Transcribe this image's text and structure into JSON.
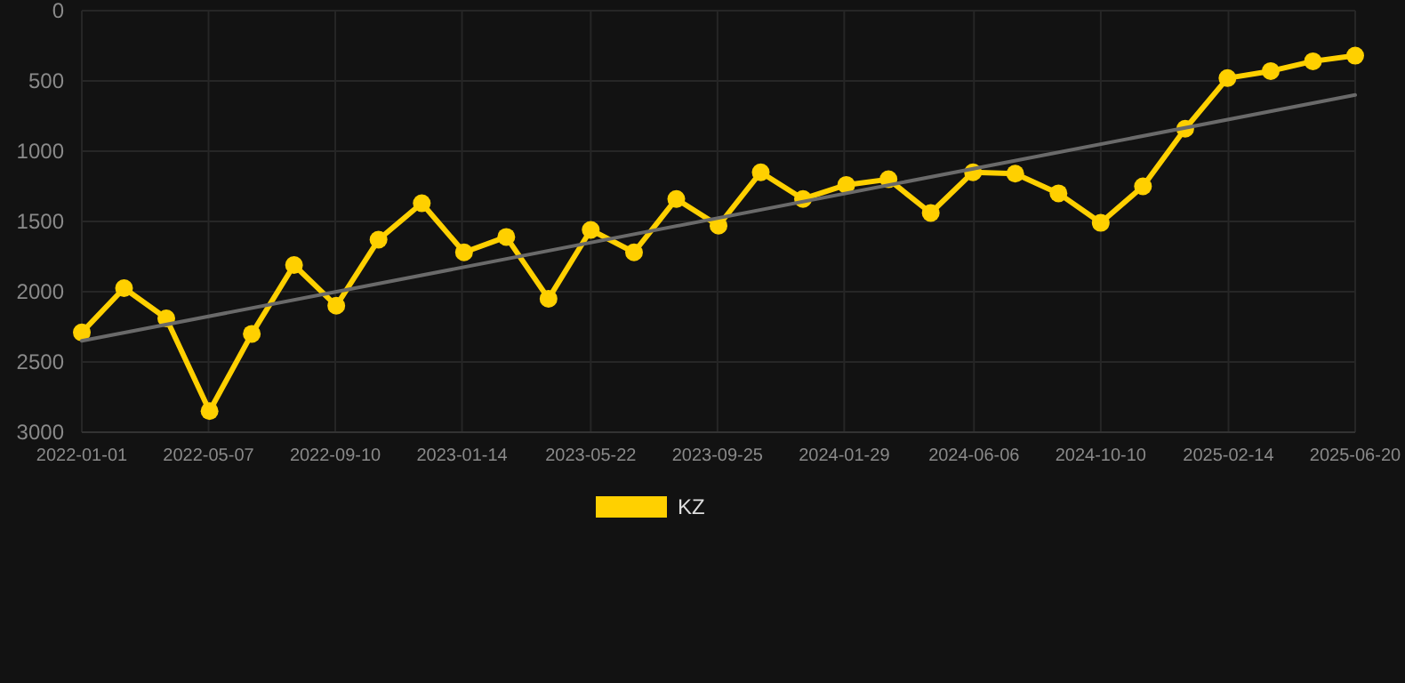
{
  "chart_data": {
    "type": "line",
    "x": [
      "2022-01-01",
      "2022-02-12",
      "2022-03-26",
      "2022-05-08",
      "2022-06-19",
      "2022-07-31",
      "2022-09-11",
      "2022-10-23",
      "2022-12-05",
      "2023-01-16",
      "2023-02-27",
      "2023-04-10",
      "2023-05-22",
      "2023-07-04",
      "2023-08-15",
      "2023-09-26",
      "2023-11-07",
      "2023-12-19",
      "2024-01-31",
      "2024-03-13",
      "2024-04-24",
      "2024-06-05",
      "2024-07-17",
      "2024-08-29",
      "2024-10-10",
      "2024-11-21",
      "2025-01-02",
      "2025-02-13",
      "2025-03-28",
      "2025-05-09",
      "2025-06-20"
    ],
    "series": [
      {
        "name": "KZ",
        "color": "#ffd000",
        "marker": "circle",
        "values": [
          2290,
          1975,
          2190,
          2850,
          2300,
          1810,
          2100,
          1630,
          1370,
          1720,
          1610,
          2050,
          1560,
          1720,
          1340,
          1530,
          1150,
          1340,
          1240,
          1200,
          1440,
          1150,
          1160,
          1300,
          1510,
          1250,
          840,
          480,
          430,
          360,
          320
        ]
      },
      {
        "type": "line",
        "color": "#6a6a6a",
        "marker": "none",
        "x": [
          "2022-01-01",
          "2025-06-20"
        ],
        "values": [
          2350,
          600
        ]
      }
    ],
    "xlim": [
      "2022-01-01",
      "2025-06-20"
    ],
    "xticks": [
      "2022-01-01",
      "2022-05-07",
      "2022-09-10",
      "2023-01-14",
      "2023-05-22",
      "2023-09-25",
      "2024-01-29",
      "2024-06-06",
      "2024-10-10",
      "2025-02-14",
      "2025-06-20"
    ],
    "ylim": [
      3000,
      0
    ],
    "yticks": [
      0,
      500,
      1000,
      1500,
      2000,
      2500,
      3000
    ],
    "grid": true,
    "legend": "bottom"
  }
}
